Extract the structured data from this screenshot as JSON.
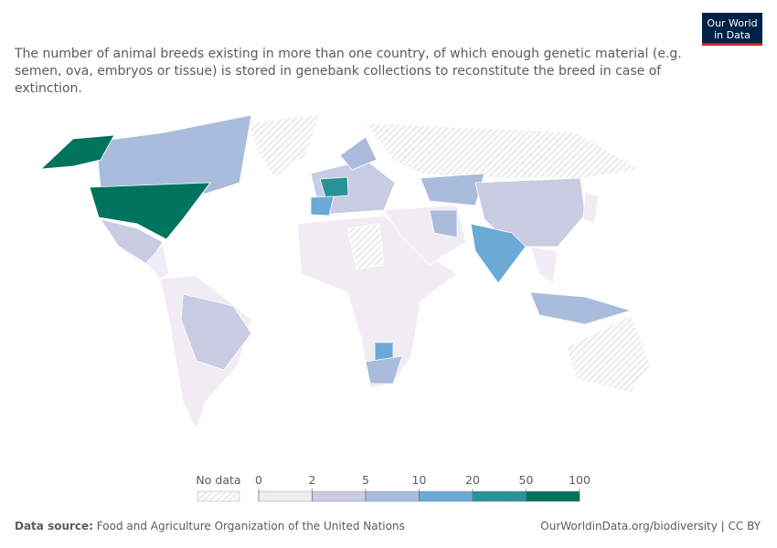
{
  "header": {
    "title": "The number of animal breeds existing in more than one country, of which enough genetic material (e.g. semen, ova, embryos or tissue) is stored in genebank collections to reconstitute the breed in case of extinction.",
    "logo": [
      "Our World",
      "in Data"
    ]
  },
  "legend": {
    "no_data": "No data",
    "ticks": [
      0,
      2,
      5,
      10,
      20,
      50,
      100
    ],
    "colors": [
      "#f1ecf4",
      "#c9cce3",
      "#a9bcdb",
      "#6aaad5",
      "#2a9397",
      "#00735f"
    ]
  },
  "footer": {
    "source_label": "Data source:",
    "source": "Food and Agriculture Organization of the United Nations",
    "url": "OurWorldinData.org/biodiversity | CC BY"
  }
}
